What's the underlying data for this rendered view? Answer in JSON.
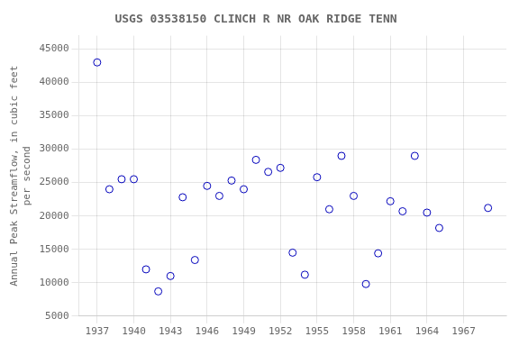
{
  "chart_data": {
    "type": "scatter",
    "title": "USGS 03538150 CLINCH R NR OAK RIDGE TENN",
    "ylabel": "Annual Peak Streamflow, in cubic feet\nper second",
    "x": [
      1937,
      1938,
      1939,
      1940,
      1941,
      1942,
      1943,
      1944,
      1945,
      1946,
      1947,
      1948,
      1949,
      1950,
      1951,
      1952,
      1953,
      1954,
      1955,
      1956,
      1957,
      1958,
      1959,
      1960,
      1961,
      1962,
      1963,
      1964,
      1965,
      1969
    ],
    "values": [
      43000,
      24000,
      25500,
      25500,
      12000,
      8700,
      11000,
      22800,
      13400,
      24500,
      23000,
      25300,
      24000,
      28400,
      26600,
      27200,
      14500,
      11200,
      25800,
      21000,
      29000,
      23000,
      9800,
      14400,
      22200,
      20700,
      29000,
      20500,
      18200,
      21200
    ],
    "xlim": [
      1935.5,
      1970.5
    ],
    "ylim": [
      5000,
      47000
    ],
    "xticks": [
      1937,
      1940,
      1943,
      1946,
      1949,
      1952,
      1955,
      1958,
      1961,
      1964,
      1967
    ],
    "yticks": [
      5000,
      10000,
      15000,
      20000,
      25000,
      30000,
      35000,
      40000,
      45000
    ],
    "color": "#0000bb",
    "marker": "open_circle",
    "grid": true
  }
}
